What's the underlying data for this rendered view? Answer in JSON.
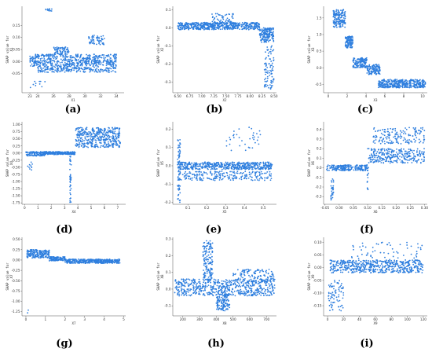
{
  "figure": {
    "point_color": "#2f7fde",
    "ylabel_prefix": "SHAP value for"
  },
  "chart_data": [
    {
      "type": "scatter",
      "caption": "(a)",
      "xlabel": "X1",
      "ylabel": "SHAP value for\nX1",
      "xlim": [
        22,
        35
      ],
      "ylim": [
        -0.13,
        0.23
      ],
      "xticks": [
        "23",
        "24",
        "26",
        "28",
        "30",
        "32",
        "34"
      ],
      "xtick_values": [
        23,
        24,
        26,
        28,
        30,
        32,
        34
      ],
      "yticks": [
        "0.15",
        "0.10",
        "0.05",
        "0.00",
        "-0.05"
      ],
      "ytick_values": [
        0.15,
        0.1,
        0.05,
        0.0,
        -0.05
      ],
      "clusters": [
        {
          "x": [
            23,
            34
          ],
          "y": [
            -0.02,
            0.03
          ],
          "n": 520
        },
        {
          "x": [
            24,
            34
          ],
          "y": [
            -0.045,
            -0.02
          ],
          "n": 200
        },
        {
          "x": [
            26,
            28
          ],
          "y": [
            0.03,
            0.06
          ],
          "n": 70
        },
        {
          "x": [
            30.5,
            32.5
          ],
          "y": [
            0.07,
            0.11
          ],
          "n": 60
        },
        {
          "x": [
            25,
            26
          ],
          "y": [
            0.21,
            0.22
          ],
          "n": 12
        },
        {
          "x": [
            23,
            25
          ],
          "y": [
            -0.11,
            -0.08
          ],
          "n": 10
        }
      ]
    },
    {
      "type": "scatter",
      "caption": "(b)",
      "xlabel": "X2",
      "ylabel": "SHAP value for\nX2",
      "xlim": [
        6.4,
        8.55
      ],
      "ylim": [
        -0.36,
        0.12
      ],
      "xticks": [
        "6.50",
        "6.75",
        "7.00",
        "7.25",
        "7.50",
        "7.75",
        "8.00",
        "8.25",
        "8.50"
      ],
      "xtick_values": [
        6.5,
        6.75,
        7.0,
        7.25,
        7.5,
        7.75,
        8.0,
        8.25,
        8.5
      ],
      "yticks": [
        "0.1",
        "0.0",
        "-0.1",
        "-0.2",
        "-0.3"
      ],
      "ytick_values": [
        0.1,
        0.0,
        -0.1,
        -0.2,
        -0.3
      ],
      "clusters": [
        {
          "x": [
            6.5,
            8.2
          ],
          "y": [
            -0.01,
            0.03
          ],
          "n": 550
        },
        {
          "x": [
            7.2,
            7.7
          ],
          "y": [
            0.02,
            0.08
          ],
          "n": 60
        },
        {
          "x": [
            8.2,
            8.5
          ],
          "y": [
            -0.08,
            0.0
          ],
          "n": 160
        },
        {
          "x": [
            8.3,
            8.5
          ],
          "y": [
            -0.34,
            -0.1
          ],
          "n": 90
        }
      ]
    },
    {
      "type": "scatter",
      "caption": "(c)",
      "xlabel": "X3",
      "ylabel": "SHAP value for\nX3",
      "xlim": [
        -0.5,
        10.5
      ],
      "ylim": [
        -0.75,
        1.85
      ],
      "xticks": [
        "0",
        "2",
        "4",
        "6",
        "8",
        "10"
      ],
      "xtick_values": [
        0,
        2,
        4,
        6,
        8,
        10
      ],
      "yticks": [
        "1.5",
        "1.0",
        "0.5",
        "0.0",
        "-0.5"
      ],
      "ytick_values": [
        1.5,
        1.0,
        0.5,
        0.0,
        -0.5
      ],
      "clusters": [
        {
          "x": [
            0.5,
            1.8
          ],
          "y": [
            1.2,
            1.75
          ],
          "n": 160
        },
        {
          "x": [
            1.8,
            2.6
          ],
          "y": [
            0.6,
            0.95
          ],
          "n": 120
        },
        {
          "x": [
            2.6,
            4.1
          ],
          "y": [
            0.0,
            0.3
          ],
          "n": 140
        },
        {
          "x": [
            4.1,
            5.5
          ],
          "y": [
            -0.2,
            0.1
          ],
          "n": 120
        },
        {
          "x": [
            5.3,
            10.3
          ],
          "y": [
            -0.6,
            -0.35
          ],
          "n": 380
        }
      ]
    },
    {
      "type": "scatter",
      "caption": "(d)",
      "xlabel": "X4",
      "ylabel": "SHAP value for\nX4",
      "xlim": [
        -0.2,
        7.6
      ],
      "ylim": [
        -1.8,
        1.1
      ],
      "xticks": [
        "0",
        "1",
        "2",
        "3",
        "4",
        "5",
        "6",
        "7"
      ],
      "xtick_values": [
        0,
        1,
        2,
        3,
        4,
        5,
        6,
        7
      ],
      "yticks": [
        "1.00",
        "0.75",
        "0.50",
        "0.25",
        "0.00",
        "-0.25",
        "-0.50",
        "-0.75",
        "-1.00",
        "-1.25",
        "-1.50",
        "-1.75"
      ],
      "ytick_values": [
        1.0,
        0.75,
        0.5,
        0.25,
        0.0,
        -0.25,
        -0.5,
        -0.75,
        -1.0,
        -1.25,
        -1.5,
        -1.75
      ],
      "clusters": [
        {
          "x": [
            0.1,
            1.5
          ],
          "y": [
            -0.1,
            0.05
          ],
          "n": 120
        },
        {
          "x": [
            1.5,
            3.8
          ],
          "y": [
            -0.05,
            0.05
          ],
          "n": 220
        },
        {
          "x": [
            3.8,
            7.2
          ],
          "y": [
            0.2,
            0.9
          ],
          "n": 420
        },
        {
          "x": [
            3.4,
            3.5
          ],
          "y": [
            -1.75,
            -0.1
          ],
          "n": 40
        },
        {
          "x": [
            0.2,
            0.6
          ],
          "y": [
            -0.6,
            -0.3
          ],
          "n": 10
        }
      ]
    },
    {
      "type": "scatter",
      "caption": "(e)",
      "xlabel": "X5",
      "ylabel": "SHAP value for\nX5",
      "xlim": [
        0.02,
        0.57
      ],
      "ylim": [
        -0.21,
        0.24
      ],
      "xticks": [
        "0.1",
        "0.2",
        "0.3",
        "0.4",
        "0.5"
      ],
      "xtick_values": [
        0.1,
        0.2,
        0.3,
        0.4,
        0.5
      ],
      "yticks": [
        "0.2",
        "0.1",
        "0.0",
        "-0.1",
        "-0.2"
      ],
      "ytick_values": [
        0.2,
        0.1,
        0.0,
        -0.1,
        -0.2
      ],
      "clusters": [
        {
          "x": [
            0.05,
            0.55
          ],
          "y": [
            -0.02,
            0.02
          ],
          "n": 520
        },
        {
          "x": [
            0.05,
            0.55
          ],
          "y": [
            -0.08,
            -0.03
          ],
          "n": 220
        },
        {
          "x": [
            0.045,
            0.06
          ],
          "y": [
            -0.2,
            0.16
          ],
          "n": 70
        },
        {
          "x": [
            0.3,
            0.5
          ],
          "y": [
            0.08,
            0.22
          ],
          "n": 35
        }
      ]
    },
    {
      "type": "scatter",
      "caption": "(f)",
      "xlabel": "X6",
      "ylabel": "SHAP value for\nX6",
      "xlim": [
        -0.055,
        0.31
      ],
      "ylim": [
        -0.38,
        0.48
      ],
      "xticks": [
        "-0.05",
        "0.00",
        "0.05",
        "0.10",
        "0.15",
        "0.20",
        "0.25",
        "0.30"
      ],
      "xtick_values": [
        -0.05,
        0.0,
        0.05,
        0.1,
        0.15,
        0.2,
        0.25,
        0.3
      ],
      "yticks": [
        "0.4",
        "0.3",
        "0.2",
        "0.1",
        "0.0",
        "-0.1",
        "-0.2",
        "-0.3"
      ],
      "ytick_values": [
        0.4,
        0.3,
        0.2,
        0.1,
        0.0,
        -0.1,
        -0.2,
        -0.3
      ],
      "clusters": [
        {
          "x": [
            -0.045,
            0.1
          ],
          "y": [
            -0.03,
            0.03
          ],
          "n": 200
        },
        {
          "x": [
            0.1,
            0.3
          ],
          "y": [
            0.05,
            0.2
          ],
          "n": 280
        },
        {
          "x": [
            0.12,
            0.3
          ],
          "y": [
            0.25,
            0.42
          ],
          "n": 160
        },
        {
          "x": [
            -0.03,
            -0.02
          ],
          "y": [
            -0.35,
            -0.1
          ],
          "n": 30
        },
        {
          "x": [
            0.098,
            0.103
          ],
          "y": [
            -0.25,
            0.05
          ],
          "n": 15
        }
      ]
    },
    {
      "type": "scatter",
      "caption": "(g)",
      "xlabel": "X7",
      "ylabel": "SHAP value for\nX7",
      "xlim": [
        -0.2,
        5.1
      ],
      "ylim": [
        -1.35,
        0.55
      ],
      "xticks": [
        "0",
        "1",
        "2",
        "3",
        "4",
        "5"
      ],
      "xtick_values": [
        0,
        1,
        2,
        3,
        4,
        5
      ],
      "yticks": [
        "0.50",
        "0.25",
        "0.00",
        "-0.25",
        "-0.50",
        "-0.75",
        "-1.00",
        "-1.25"
      ],
      "ytick_values": [
        0.5,
        0.25,
        0.0,
        -0.25,
        -0.5,
        -0.75,
        -1.0,
        -1.25
      ],
      "clusters": [
        {
          "x": [
            0.05,
            1.2
          ],
          "y": [
            0.05,
            0.25
          ],
          "n": 200
        },
        {
          "x": [
            1.2,
            2.0
          ],
          "y": [
            -0.02,
            0.08
          ],
          "n": 120
        },
        {
          "x": [
            2.0,
            4.8
          ],
          "y": [
            -0.08,
            0.02
          ],
          "n": 380
        },
        {
          "x": [
            0.0,
            0.15
          ],
          "y": [
            -1.3,
            -1.2
          ],
          "n": 2
        }
      ]
    },
    {
      "type": "scatter",
      "caption": "(h)",
      "xlabel": "X8",
      "ylabel": "SHAP value for\nX8",
      "xlim": [
        140,
        760
      ],
      "ylim": [
        -0.16,
        0.31
      ],
      "xticks": [
        "200",
        "300",
        "400",
        "500",
        "600",
        "700"
      ],
      "xtick_values": [
        200,
        300,
        400,
        500,
        600,
        700
      ],
      "yticks": [
        "0.3",
        "0.2",
        "0.1",
        "0.0",
        "-0.1"
      ],
      "ytick_values": [
        0.3,
        0.2,
        0.1,
        0.0,
        -0.1
      ],
      "clusters": [
        {
          "x": [
            150,
            750
          ],
          "y": [
            -0.04,
            0.06
          ],
          "n": 600
        },
        {
          "x": [
            320,
            380
          ],
          "y": [
            0.05,
            0.29
          ],
          "n": 140
        },
        {
          "x": [
            400,
            480
          ],
          "y": [
            -0.13,
            -0.03
          ],
          "n": 120
        },
        {
          "x": [
            500,
            750
          ],
          "y": [
            0.04,
            0.12
          ],
          "n": 120
        }
      ]
    },
    {
      "type": "scatter",
      "caption": "(i)",
      "xlabel": "X9",
      "ylabel": "SHAP value for\nX9",
      "xlim": [
        -5,
        125
      ],
      "ylim": [
        -0.19,
        0.12
      ],
      "xticks": [
        "0",
        "20",
        "40",
        "60",
        "80",
        "100",
        "120"
      ],
      "xtick_values": [
        0,
        20,
        40,
        60,
        80,
        100,
        120
      ],
      "yticks": [
        "0.10",
        "0.05",
        "0.00",
        "-0.05",
        "-0.10",
        "-0.15"
      ],
      "ytick_values": [
        0.1,
        0.05,
        0.0,
        -0.05,
        -0.1,
        -0.15
      ],
      "clusters": [
        {
          "x": [
            3,
            120
          ],
          "y": [
            -0.02,
            0.03
          ],
          "n": 520
        },
        {
          "x": [
            1,
            20
          ],
          "y": [
            -0.17,
            -0.04
          ],
          "n": 80
        },
        {
          "x": [
            30,
            120
          ],
          "y": [
            0.0,
            0.1
          ],
          "n": 80
        }
      ]
    }
  ]
}
